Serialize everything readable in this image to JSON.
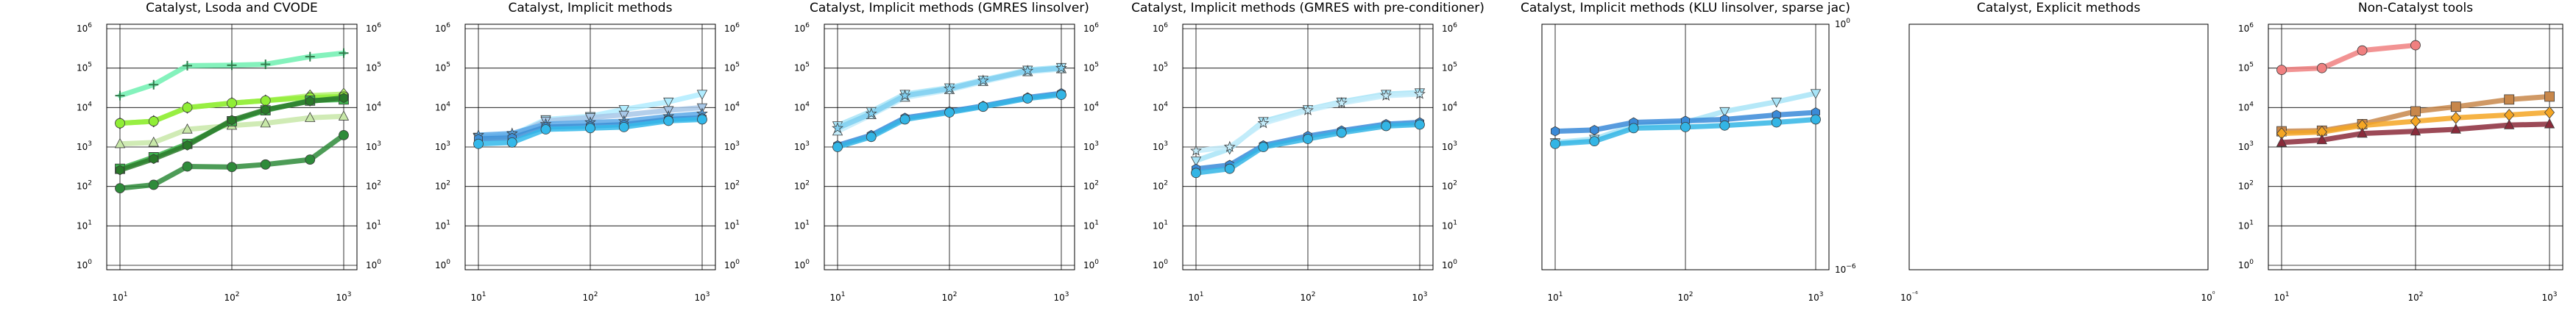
{
  "chart_data": [
    {
      "type": "line",
      "title": "Catalyst, Lsoda and CVODE",
      "xscale": "log",
      "yscale": "log",
      "xlim": [
        10,
        1000
      ],
      "ylim": [
        1,
        1000000
      ],
      "xticks": [
        10,
        100,
        1000
      ],
      "yticks": [
        1,
        10,
        100,
        1000,
        10000,
        100000,
        1000000
      ],
      "grid": true,
      "right_ticks": true,
      "series": [
        {
          "color": "#6ef0b0",
          "marker": "plus",
          "x": [
            10,
            20,
            40,
            100,
            200,
            500,
            1000
          ],
          "y": [
            20000,
            38000,
            115000,
            118000,
            125000,
            195000,
            240000
          ]
        },
        {
          "color": "#b4f06e",
          "marker": "diamond",
          "x": [
            10,
            20,
            40,
            100,
            200,
            500,
            1000
          ],
          "y": [
            4000,
            4500,
            10000,
            13000,
            15000,
            20000,
            22000
          ]
        },
        {
          "color": "#90ee36",
          "marker": "circle",
          "x": [
            10,
            20,
            40,
            100,
            200,
            500,
            1000
          ],
          "y": [
            4000,
            4500,
            10000,
            13000,
            15000,
            18000,
            19000
          ]
        },
        {
          "color": "#c8e8a8",
          "marker": "triangle",
          "x": [
            10,
            20,
            40,
            100,
            200,
            500,
            1000
          ],
          "y": [
            1200,
            1300,
            2800,
            3500,
            4000,
            5500,
            6000
          ]
        },
        {
          "color": "#3cb44b",
          "marker": "square",
          "x": [
            10,
            20,
            40,
            100,
            200,
            500,
            1000
          ],
          "y": [
            280,
            550,
            1200,
            4500,
            8500,
            15000,
            16000
          ]
        },
        {
          "color": "#2a7a2a",
          "marker": "hexagon",
          "x": [
            10,
            20,
            40,
            100,
            200,
            500,
            1000
          ],
          "y": [
            260,
            500,
            1100,
            4800,
            8800,
            14500,
            17500
          ]
        },
        {
          "color": "#2e8b3a",
          "marker": "circle",
          "x": [
            10,
            20,
            40,
            100,
            200,
            500,
            1000
          ],
          "y": [
            90,
            110,
            320,
            310,
            360,
            480,
            2000
          ]
        }
      ]
    },
    {
      "type": "line",
      "title": "Catalyst, Implicit methods",
      "xscale": "log",
      "yscale": "log",
      "xlim": [
        10,
        1000
      ],
      "ylim": [
        1,
        1000000
      ],
      "xticks": [
        10,
        100,
        1000
      ],
      "yticks": [
        1,
        10,
        100,
        1000,
        10000,
        100000,
        1000000
      ],
      "grid": true,
      "right_ticks": true,
      "series": [
        {
          "color": "#b0ecff",
          "marker": "triangle-down",
          "x": [
            10,
            20,
            40,
            100,
            200,
            500,
            1000
          ],
          "y": [
            1800,
            2000,
            5000,
            6000,
            9000,
            14000,
            22000
          ]
        },
        {
          "color": "#a7c7e7",
          "marker": "triangle-down",
          "x": [
            10,
            20,
            40,
            100,
            200,
            500,
            1000
          ],
          "y": [
            1700,
            1900,
            4600,
            5600,
            6500,
            8500,
            10000
          ]
        },
        {
          "color": "#5aa8e8",
          "marker": "star",
          "x": [
            10,
            20,
            40,
            100,
            200,
            500,
            1000
          ],
          "y": [
            2000,
            2200,
            3800,
            4200,
            4500,
            6000,
            7000
          ]
        },
        {
          "color": "#3d8fd6",
          "marker": "hexagon",
          "x": [
            10,
            20,
            40,
            100,
            200,
            500,
            1000
          ],
          "y": [
            1600,
            1700,
            3200,
            3400,
            3700,
            5000,
            5500
          ]
        },
        {
          "color": "#33b8ea",
          "marker": "circle",
          "x": [
            10,
            20,
            40,
            100,
            200,
            500,
            1000
          ],
          "y": [
            1200,
            1300,
            2800,
            3000,
            3200,
            4600,
            5000
          ]
        }
      ]
    },
    {
      "type": "line",
      "title": "Catalyst, Implicit methods (GMRES linsolver)",
      "xscale": "log",
      "yscale": "log",
      "xlim": [
        10,
        1000
      ],
      "ylim": [
        1,
        1000000
      ],
      "xticks": [
        10,
        100,
        1000
      ],
      "yticks": [
        1,
        10,
        100,
        1000,
        10000,
        100000,
        1000000
      ],
      "grid": true,
      "right_ticks": true,
      "series": [
        {
          "color": "#a8e4f7",
          "marker": "triangle-down",
          "x": [
            10,
            20,
            40,
            100,
            200,
            500,
            1000
          ],
          "y": [
            3500,
            8000,
            22000,
            32000,
            50000,
            90000,
            105000
          ]
        },
        {
          "color": "#c4ecfa",
          "marker": "triangle",
          "x": [
            10,
            20,
            40,
            100,
            200,
            500,
            1000
          ],
          "y": [
            2500,
            6500,
            18000,
            28000,
            45000,
            80000,
            95000
          ]
        },
        {
          "color": "#7fcff0",
          "marker": "star",
          "x": [
            10,
            20,
            40,
            100,
            200,
            500,
            1000
          ],
          "y": [
            3000,
            7000,
            20000,
            30000,
            48000,
            85000,
            100000
          ]
        },
        {
          "color": "#3a8ad8",
          "marker": "hexagon",
          "x": [
            10,
            20,
            40,
            100,
            200,
            500,
            1000
          ],
          "y": [
            1100,
            2000,
            5500,
            8000,
            11000,
            18000,
            23000
          ]
        },
        {
          "color": "#33b5e5",
          "marker": "circle",
          "x": [
            10,
            20,
            40,
            100,
            200,
            500,
            1000
          ],
          "y": [
            1000,
            1800,
            5000,
            7500,
            10500,
            17000,
            21000
          ]
        }
      ]
    },
    {
      "type": "line",
      "title": "Catalyst, Implicit methods (GMRES with pre-conditioner)",
      "xscale": "log",
      "yscale": "log",
      "xlim": [
        10,
        1000
      ],
      "ylim": [
        1,
        1000000
      ],
      "xticks": [
        10,
        100,
        1000
      ],
      "yticks": [
        1,
        10,
        100,
        1000,
        10000,
        100000,
        1000000
      ],
      "grid": true,
      "right_ticks": true,
      "series": [
        {
          "color": "#a8e4f7",
          "marker": "triangle-down",
          "x": [
            10,
            20,
            40,
            100,
            200,
            500,
            1000
          ],
          "y": [
            450,
            900,
            4500,
            9000,
            14000,
            22000,
            24000
          ]
        },
        {
          "color": "#c4ecfa",
          "marker": "star",
          "x": [
            10,
            20,
            40,
            100,
            200,
            500,
            1000
          ],
          "y": [
            800,
            1000,
            4000,
            8500,
            13000,
            20000,
            22000
          ]
        },
        {
          "color": "#3a8ad8",
          "marker": "hexagon",
          "x": [
            10,
            20,
            40,
            100,
            200,
            500,
            1000
          ],
          "y": [
            280,
            350,
            1100,
            1900,
            2600,
            3800,
            4200
          ]
        },
        {
          "color": "#33b5e5",
          "marker": "circle",
          "x": [
            10,
            20,
            40,
            100,
            200,
            500,
            1000
          ],
          "y": [
            220,
            280,
            1000,
            1600,
            2300,
            3400,
            3700
          ]
        }
      ]
    },
    {
      "type": "line",
      "title": "Catalyst, Implicit methods (KLU linsolver, sparse jac)",
      "xscale": "log",
      "yscale": "log",
      "xlim": [
        10,
        1000
      ],
      "ylim": [
        1,
        1000000
      ],
      "xticks": [
        10,
        100,
        1000
      ],
      "right_ticks": true,
      "right_tick_labels": [
        "10⁻⁶",
        "10⁰"
      ],
      "grid": true,
      "series": [
        {
          "color": "#a8e4f7",
          "marker": "triangle-down",
          "x": [
            10,
            20,
            40,
            100,
            200,
            500,
            1000
          ],
          "y": [
            1300,
            1600,
            3500,
            4200,
            8000,
            14000,
            23000
          ]
        },
        {
          "color": "#3a8ad8",
          "marker": "hexagon",
          "x": [
            10,
            20,
            40,
            100,
            200,
            500,
            1000
          ],
          "y": [
            2500,
            2700,
            4200,
            4600,
            5000,
            6500,
            7500
          ]
        },
        {
          "color": "#33b5e5",
          "marker": "circle",
          "x": [
            10,
            20,
            40,
            100,
            200,
            500,
            1000
          ],
          "y": [
            1200,
            1400,
            3000,
            3200,
            3500,
            4200,
            5000
          ]
        }
      ]
    },
    {
      "type": "line",
      "title": "Catalyst, Explicit methods",
      "xscale": "log",
      "yscale": "log",
      "xtick_labels": [
        "10⁻⁶",
        "10⁰"
      ],
      "grid": false,
      "series": []
    },
    {
      "type": "line",
      "title": "Non-Catalyst tools",
      "xscale": "log",
      "yscale": "log",
      "xlim": [
        10,
        1000
      ],
      "ylim": [
        1,
        1000000
      ],
      "xticks": [
        10,
        100,
        1000
      ],
      "yticks": [
        1,
        10,
        100,
        1000,
        10000,
        100000,
        1000000
      ],
      "grid": true,
      "right_ticks": false,
      "series": [
        {
          "color": "#f08080",
          "marker": "circle",
          "x": [
            10,
            20,
            40,
            100
          ],
          "y": [
            90000,
            100000,
            280000,
            380000
          ]
        },
        {
          "color": "#c8874a",
          "marker": "square",
          "x": [
            10,
            20,
            40,
            100,
            200,
            500,
            1000
          ],
          "y": [
            2500,
            2600,
            3800,
            8000,
            10500,
            16000,
            19000
          ]
        },
        {
          "color": "#f5a623",
          "marker": "diamond",
          "x": [
            10,
            20,
            40,
            100,
            200,
            500,
            1000
          ],
          "y": [
            2200,
            2400,
            3500,
            4500,
            5500,
            6500,
            7500
          ]
        },
        {
          "color": "#8b2a3a",
          "marker": "triangle",
          "x": [
            10,
            20,
            40,
            100,
            200,
            500,
            1000
          ],
          "y": [
            1300,
            1500,
            2200,
            2500,
            2800,
            3600,
            3800
          ]
        }
      ]
    }
  ]
}
